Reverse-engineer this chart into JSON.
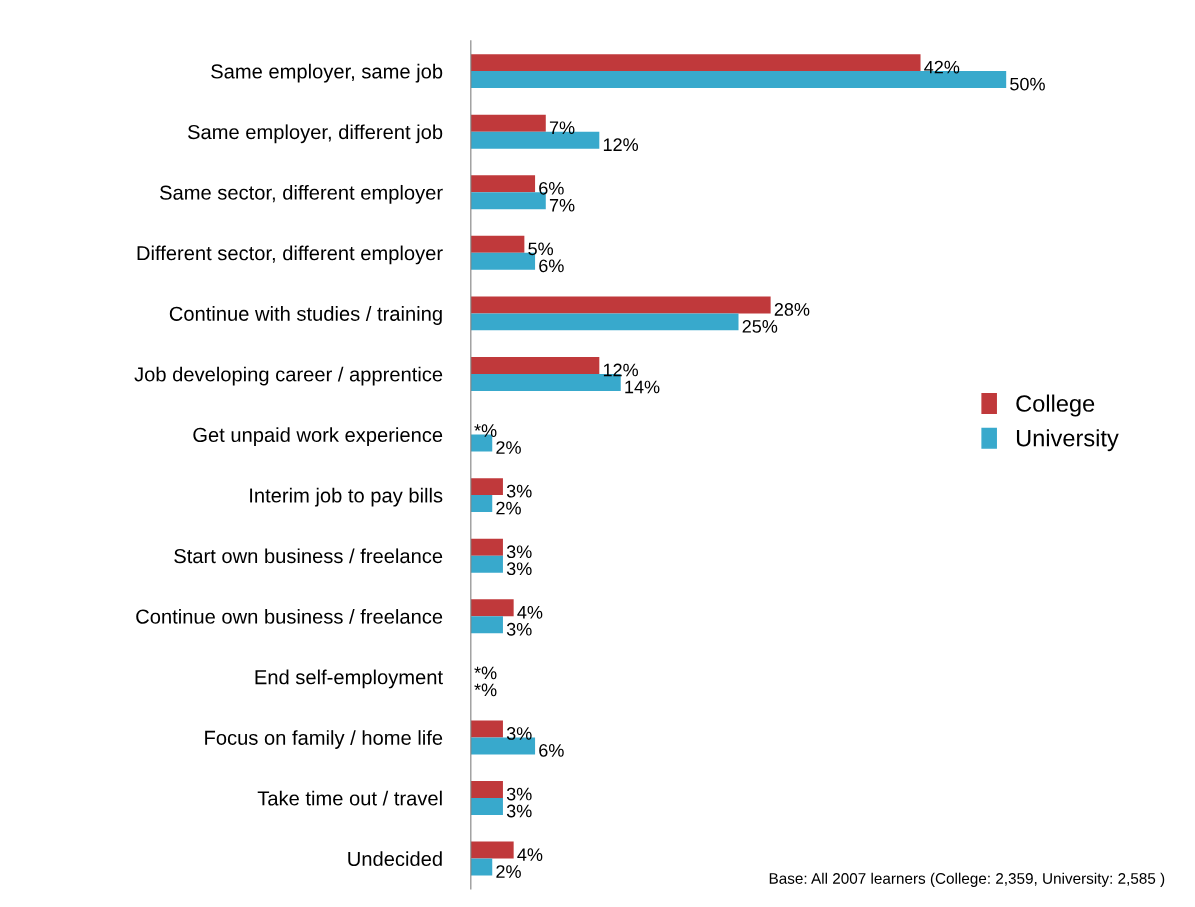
{
  "chart_data": {
    "type": "bar",
    "orientation": "horizontal",
    "categories": [
      "Same employer, same job",
      "Same employer, different job",
      "Same sector, different employer",
      "Different sector, different employer",
      "Continue with studies / training",
      "Job developing career / apprentice",
      "Get unpaid work experience",
      "Interim job to pay bills",
      "Start own business / freelance",
      "Continue own business / freelance",
      "End self-employment",
      "Focus on family / home life",
      "Take time out / travel",
      "Undecided"
    ],
    "series": [
      {
        "name": "College",
        "color": "#c0393b",
        "values": [
          42,
          7,
          6,
          5,
          28,
          12,
          0,
          3,
          3,
          4,
          0,
          3,
          3,
          4
        ],
        "value_labels": [
          "42%",
          "7%",
          "6%",
          "5%",
          "28%",
          "12%",
          "*%",
          "3%",
          "3%",
          "4%",
          "*%",
          "3%",
          "3%",
          "4%"
        ]
      },
      {
        "name": "University",
        "color": "#38a9cc",
        "values": [
          50,
          12,
          7,
          6,
          25,
          14,
          2,
          2,
          3,
          3,
          0,
          6,
          3,
          2
        ],
        "value_labels": [
          "50%",
          "12%",
          "7%",
          "6%",
          "25%",
          "14%",
          "2%",
          "2%",
          "3%",
          "3%",
          "*%",
          "6%",
          "3%",
          "2%"
        ]
      }
    ],
    "legend": "right",
    "annotations": [
      "Base: All 2007 learners (College: 2,359, University: 2,585 )"
    ]
  }
}
